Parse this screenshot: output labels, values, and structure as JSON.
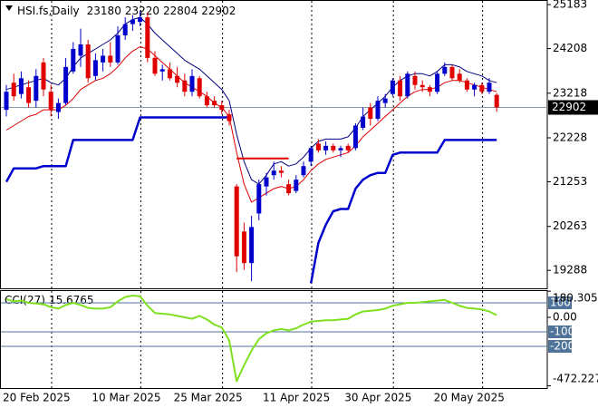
{
  "chart_data": {
    "type": "candlestick",
    "header": "HSI.fs,Daily",
    "header_ohlc": [
      23180,
      23220,
      22804,
      22902
    ],
    "categories": [
      "20 Feb 2025",
      null,
      null,
      null,
      null,
      null,
      null,
      null,
      null,
      null,
      null,
      null,
      "10 Mar 2025",
      null,
      null,
      null,
      null,
      null,
      null,
      null,
      null,
      null,
      null,
      "25 Mar 2025",
      null,
      null,
      null,
      null,
      null,
      null,
      null,
      null,
      null,
      null,
      null,
      "11 Apr 2025",
      null,
      null,
      null,
      null,
      null,
      null,
      null,
      null,
      null,
      null,
      "30 Apr 2025",
      null,
      null,
      null,
      null,
      null,
      null,
      null,
      null,
      null,
      null,
      null,
      "20 May 2025",
      null,
      null,
      null,
      null,
      null,
      null,
      null,
      null
    ],
    "open": [
      22850,
      23450,
      23200,
      23350,
      23050,
      23900,
      23250,
      22800,
      23000,
      23700,
      24050,
      24300,
      23600,
      23900,
      24050,
      23900,
      24500,
      24750,
      24800,
      24900,
      24000,
      23700,
      23750,
      23600,
      23500,
      23250,
      23550,
      23150,
      23050,
      22950,
      22750,
      21150,
      20150,
      19450,
      20550,
      21150,
      21400,
      21500,
      21200,
      21050,
      21400,
      21700,
      22100,
      21950,
      22050,
      21950,
      22050,
      22000,
      22450,
      22900,
      22650,
      23000,
      23200,
      23500,
      23150,
      23600,
      23400,
      23350,
      23250,
      23650,
      23800,
      23650,
      23500,
      23300,
      23400,
      23250,
      23180
    ],
    "high": [
      23400,
      23650,
      23700,
      23500,
      23750,
      24000,
      23400,
      23100,
      24000,
      24350,
      24650,
      24400,
      24100,
      24200,
      24350,
      24700,
      24900,
      24950,
      25050,
      25000,
      24150,
      23850,
      23900,
      23800,
      23650,
      23750,
      23600,
      23250,
      23150,
      23050,
      22850,
      21200,
      20350,
      20500,
      21300,
      21450,
      21700,
      21600,
      21300,
      21400,
      21700,
      22050,
      22200,
      22150,
      22100,
      22050,
      22100,
      22550,
      22900,
      23000,
      23150,
      23200,
      23550,
      23600,
      23700,
      23700,
      23500,
      23400,
      23700,
      23900,
      23850,
      23750,
      23550,
      23450,
      23450,
      23550,
      23220
    ],
    "low": [
      22700,
      23050,
      23100,
      22900,
      22900,
      23150,
      22700,
      22650,
      22950,
      23650,
      23800,
      23450,
      23500,
      23700,
      23800,
      23850,
      24400,
      24600,
      24700,
      23900,
      23600,
      23500,
      23500,
      23350,
      23150,
      23150,
      23100,
      22900,
      22900,
      22750,
      22500,
      19250,
      19300,
      19050,
      20400,
      20950,
      21300,
      21350,
      20950,
      21000,
      21350,
      21600,
      21900,
      21850,
      21900,
      21800,
      21900,
      21950,
      22400,
      22500,
      22600,
      22900,
      23150,
      23050,
      23100,
      23300,
      23250,
      23150,
      23200,
      23600,
      23500,
      23450,
      23250,
      23150,
      23200,
      23200,
      22804
    ],
    "close": [
      23250,
      23150,
      23550,
      23000,
      23600,
      23300,
      22850,
      23000,
      23800,
      24200,
      24300,
      23550,
      23950,
      24050,
      23900,
      24500,
      24750,
      24850,
      24900,
      24000,
      23650,
      23750,
      23550,
      23450,
      23250,
      23600,
      23150,
      22950,
      22950,
      22850,
      22600,
      19600,
      19450,
      20250,
      21200,
      21350,
      21500,
      21450,
      21000,
      21300,
      21600,
      22000,
      21950,
      22050,
      21950,
      22000,
      21950,
      22500,
      22700,
      22650,
      23050,
      23100,
      23500,
      23150,
      23650,
      23400,
      23350,
      23250,
      23650,
      23800,
      23550,
      23500,
      23300,
      23400,
      23250,
      23450,
      22902
    ],
    "up_color": "#0000cc",
    "down_color": "#e00000",
    "ylim": [
      18890,
      25285
    ],
    "yticks": [
      19288,
      20263,
      21253,
      22228,
      23218,
      24208,
      25183
    ],
    "series": [
      {
        "color": "#000080",
        "width": 1,
        "values": [
          23300,
          23350,
          23400,
          23450,
          23500,
          23550,
          23450,
          23400,
          23550,
          23800,
          24000,
          24100,
          24200,
          24300,
          24400,
          24550,
          24750,
          24850,
          24900,
          24750,
          24550,
          24400,
          24250,
          24100,
          23950,
          23850,
          23750,
          23600,
          23450,
          23300,
          23050,
          22300,
          21700,
          21300,
          21200,
          21400,
          21650,
          21700,
          21600,
          21650,
          21800,
          22000,
          22150,
          22200,
          22200,
          22200,
          22250,
          22450,
          22700,
          22850,
          23000,
          23150,
          23350,
          23500,
          23600,
          23650,
          23650,
          23600,
          23700,
          23850,
          23850,
          23800,
          23700,
          23650,
          23600,
          23500,
          23450
        ]
      },
      {
        "color": "#e00000",
        "width": 1,
        "values": [
          22400,
          22500,
          22600,
          22700,
          22750,
          22850,
          22850,
          22850,
          22950,
          23100,
          23300,
          23400,
          23500,
          23550,
          23650,
          23800,
          24000,
          24150,
          24250,
          24200,
          24050,
          23900,
          23750,
          23600,
          23450,
          23350,
          23250,
          23150,
          23000,
          22900,
          22700,
          21900,
          21200,
          20800,
          20900,
          21000,
          21100,
          21150,
          21100,
          21150,
          21300,
          21500,
          21650,
          21750,
          21800,
          21850,
          21900,
          22050,
          22250,
          22400,
          22550,
          22700,
          22850,
          23000,
          23150,
          23250,
          23300,
          23300,
          23350,
          23450,
          23500,
          23500,
          23450,
          23400,
          23350,
          23300,
          23250
        ]
      },
      {
        "color": "#0000cc",
        "width": 2.5,
        "values": [
          21250,
          21550,
          21550,
          21550,
          21550,
          21600,
          21600,
          21600,
          21600,
          22180,
          22180,
          22180,
          22180,
          22180,
          22180,
          22180,
          22180,
          22180,
          22680,
          22680,
          22680,
          22680,
          22680,
          22680,
          22680,
          22680,
          22680,
          22680,
          22680,
          22680,
          22680,
          null,
          null,
          null,
          null,
          null,
          null,
          null,
          null,
          null,
          null,
          19000,
          19900,
          20300,
          20600,
          20650,
          20650,
          21100,
          21300,
          21400,
          21450,
          21450,
          21850,
          21900,
          21900,
          21900,
          21900,
          21900,
          21900,
          22180,
          22180,
          22180,
          22180,
          22180,
          22180,
          22180,
          22180
        ]
      },
      {
        "color": "#e00000",
        "width": 2,
        "values": [
          null,
          null,
          null,
          null,
          null,
          null,
          null,
          null,
          null,
          null,
          null,
          null,
          null,
          null,
          null,
          null,
          null,
          null,
          null,
          null,
          null,
          null,
          null,
          null,
          null,
          null,
          null,
          null,
          null,
          null,
          null,
          21770,
          21770,
          21770,
          21770,
          21770,
          21770,
          21770,
          21770,
          null,
          null,
          null,
          null,
          null,
          null,
          null,
          null,
          null,
          null,
          null,
          null,
          null,
          null,
          null,
          null,
          null,
          null,
          null,
          null,
          null,
          null,
          null,
          null,
          null,
          null,
          null,
          null
        ]
      }
    ],
    "indicator": {
      "type": "line",
      "title": "CCI(27)",
      "color": "#7ee01e",
      "values": [
        125,
        110,
        115,
        100,
        95,
        90,
        70,
        60,
        85,
        100,
        85,
        65,
        60,
        60,
        70,
        110,
        140,
        150,
        145,
        80,
        30,
        25,
        20,
        10,
        0,
        -10,
        10,
        -15,
        -50,
        -70,
        -160,
        -440,
        -330,
        -230,
        -150,
        -110,
        -90,
        -80,
        -90,
        -75,
        -50,
        -30,
        -25,
        -20,
        -20,
        -15,
        -10,
        20,
        40,
        45,
        50,
        60,
        80,
        90,
        100,
        100,
        105,
        110,
        115,
        120,
        100,
        80,
        65,
        60,
        55,
        40,
        15.6765
      ],
      "ylim": [
        -487.5,
        187.5
      ],
      "yticks": [
        {
          "value": 180.305,
          "label": "180.305"
        },
        {
          "value": 0,
          "label": "0.00"
        },
        {
          "value": -472.227,
          "label": "-472.227"
        }
      ],
      "levels": [
        100,
        -100,
        -200
      ],
      "level_color": "#4f7399"
    }
  }
}
